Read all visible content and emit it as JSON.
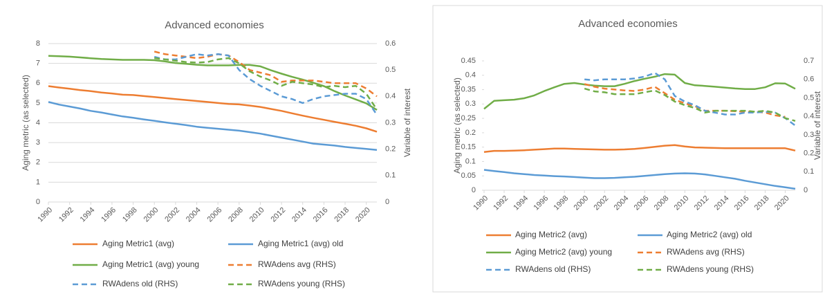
{
  "chart_data": [
    {
      "type": "line",
      "title": "Advanced economies",
      "y_label": "Aging metric (as selected)",
      "y2_label": "Variable of interest",
      "x": [
        1990,
        1991,
        1992,
        1993,
        1994,
        1995,
        1996,
        1997,
        1998,
        1999,
        2000,
        2001,
        2002,
        2003,
        2004,
        2005,
        2006,
        2007,
        2008,
        2009,
        2010,
        2011,
        2012,
        2013,
        2014,
        2015,
        2016,
        2017,
        2018,
        2019,
        2020,
        2021
      ],
      "xlim": [
        1990,
        2021
      ],
      "xticks": [
        1990,
        1992,
        1994,
        1996,
        1998,
        2000,
        2002,
        2004,
        2006,
        2008,
        2010,
        2012,
        2014,
        2016,
        2018,
        2020
      ],
      "ylim": [
        0,
        8
      ],
      "yticks": [
        0,
        1,
        2,
        3,
        4,
        5,
        6,
        7,
        8
      ],
      "y2lim": [
        0,
        0.6
      ],
      "y2ticks": [
        0,
        0.1,
        0.2,
        0.3,
        0.4,
        0.5,
        0.6
      ],
      "grid": true,
      "legend": "bottom",
      "series": [
        {
          "name": "Aging Metric1 (avg)",
          "color": "#ed7d31",
          "dashed": false,
          "values": [
            5.85,
            5.78,
            5.72,
            5.65,
            5.6,
            5.53,
            5.48,
            5.42,
            5.4,
            5.35,
            5.3,
            5.25,
            5.2,
            5.15,
            5.1,
            5.05,
            5.0,
            4.95,
            4.93,
            4.87,
            4.8,
            4.7,
            4.6,
            4.48,
            4.36,
            4.25,
            4.15,
            4.05,
            3.95,
            3.85,
            3.72,
            3.55
          ]
        },
        {
          "name": "Aging Metric1 (avg) old",
          "color": "#5b9bd5",
          "dashed": false,
          "values": [
            5.05,
            4.92,
            4.82,
            4.72,
            4.6,
            4.52,
            4.42,
            4.32,
            4.25,
            4.17,
            4.1,
            4.02,
            3.95,
            3.88,
            3.8,
            3.75,
            3.7,
            3.65,
            3.6,
            3.53,
            3.45,
            3.35,
            3.25,
            3.15,
            3.05,
            2.95,
            2.9,
            2.85,
            2.78,
            2.73,
            2.68,
            2.63
          ]
        },
        {
          "name": "Aging Metric1 (avg) young",
          "color": "#70ad47",
          "dashed": false,
          "values": [
            7.38,
            7.36,
            7.34,
            7.3,
            7.26,
            7.22,
            7.2,
            7.18,
            7.18,
            7.18,
            7.16,
            7.1,
            7.02,
            6.98,
            6.93,
            6.9,
            6.9,
            6.9,
            6.92,
            6.92,
            6.85,
            6.65,
            6.48,
            6.32,
            6.18,
            6.02,
            5.85,
            5.6,
            5.38,
            5.18,
            4.98,
            4.65
          ]
        },
        {
          "name": "RWAdens avg (RHS)",
          "color": "#ed7d31",
          "dashed": true,
          "axis": "y2",
          "values": [
            null,
            null,
            null,
            null,
            null,
            null,
            null,
            null,
            null,
            null,
            0.57,
            0.56,
            0.555,
            0.55,
            0.545,
            0.55,
            0.56,
            0.555,
            0.53,
            0.5,
            0.49,
            0.48,
            0.455,
            0.46,
            0.46,
            0.46,
            0.455,
            0.45,
            0.45,
            0.45,
            0.43,
            0.4
          ]
        },
        {
          "name": "RWAdens old (RHS)",
          "color": "#5b9bd5",
          "dashed": true,
          "axis": "y2",
          "values": [
            null,
            null,
            null,
            null,
            null,
            null,
            null,
            null,
            null,
            null,
            0.55,
            0.54,
            0.54,
            0.55,
            0.56,
            0.555,
            0.56,
            0.555,
            0.5,
            0.465,
            0.44,
            0.42,
            0.4,
            0.39,
            0.375,
            0.39,
            0.4,
            0.405,
            0.41,
            0.41,
            0.39,
            0.33
          ]
        },
        {
          "name": "RWAdens young (RHS)",
          "color": "#70ad47",
          "dashed": true,
          "axis": "y2",
          "values": [
            null,
            null,
            null,
            null,
            null,
            null,
            null,
            null,
            null,
            null,
            0.545,
            0.54,
            0.535,
            0.53,
            0.528,
            0.53,
            0.54,
            0.545,
            0.525,
            0.495,
            0.475,
            0.46,
            0.44,
            0.455,
            0.45,
            0.445,
            0.435,
            0.44,
            0.435,
            0.44,
            0.41,
            0.35
          ]
        }
      ]
    },
    {
      "type": "line",
      "title": "Advanced economies",
      "y_label": "Aging metric (as selected)",
      "y2_label": "Variable of interest",
      "x": [
        1990,
        1991,
        1992,
        1993,
        1994,
        1995,
        1996,
        1997,
        1998,
        1999,
        2000,
        2001,
        2002,
        2003,
        2004,
        2005,
        2006,
        2007,
        2008,
        2009,
        2010,
        2011,
        2012,
        2013,
        2014,
        2015,
        2016,
        2017,
        2018,
        2019,
        2020,
        2021
      ],
      "xlim": [
        1990,
        2021
      ],
      "xticks": [
        1990,
        1992,
        1994,
        1996,
        1998,
        2000,
        2002,
        2004,
        2006,
        2008,
        2010,
        2012,
        2014,
        2016,
        2018,
        2020
      ],
      "ylim": [
        0,
        0.45
      ],
      "yticks": [
        0,
        0.05,
        0.1,
        0.15,
        0.2,
        0.25,
        0.3,
        0.35,
        0.4,
        0.45
      ],
      "y2lim": [
        0,
        0.7
      ],
      "y2ticks": [
        0,
        0.1,
        0.2,
        0.3,
        0.4,
        0.5,
        0.6,
        0.7
      ],
      "grid": false,
      "legend": "bottom",
      "series": [
        {
          "name": "Aging Metric2 (avg)",
          "color": "#ed7d31",
          "dashed": false,
          "values": [
            0.133,
            0.137,
            0.137,
            0.138,
            0.139,
            0.141,
            0.143,
            0.145,
            0.145,
            0.144,
            0.143,
            0.142,
            0.141,
            0.141,
            0.142,
            0.144,
            0.147,
            0.151,
            0.155,
            0.157,
            0.152,
            0.149,
            0.148,
            0.147,
            0.146,
            0.146,
            0.146,
            0.146,
            0.146,
            0.146,
            0.146,
            0.138
          ]
        },
        {
          "name": "Aging Metric2 (avg) old",
          "color": "#5b9bd5",
          "dashed": false,
          "values": [
            0.071,
            0.067,
            0.063,
            0.059,
            0.056,
            0.053,
            0.051,
            0.049,
            0.048,
            0.046,
            0.044,
            0.042,
            0.042,
            0.043,
            0.045,
            0.047,
            0.05,
            0.053,
            0.056,
            0.058,
            0.059,
            0.058,
            0.055,
            0.05,
            0.045,
            0.04,
            0.033,
            0.027,
            0.021,
            0.015,
            0.01,
            0.005
          ]
        },
        {
          "name": "Aging Metric2 (avg) young",
          "color": "#70ad47",
          "dashed": false,
          "values": [
            0.283,
            0.311,
            0.313,
            0.315,
            0.32,
            0.33,
            0.345,
            0.358,
            0.37,
            0.373,
            0.368,
            0.364,
            0.362,
            0.362,
            0.37,
            0.38,
            0.388,
            0.395,
            0.404,
            0.402,
            0.373,
            0.365,
            0.363,
            0.36,
            0.357,
            0.354,
            0.352,
            0.352,
            0.358,
            0.372,
            0.371,
            0.353
          ]
        },
        {
          "name": "RWAdens avg (RHS)",
          "color": "#ed7d31",
          "dashed": true,
          "axis": "y2",
          "values": [
            null,
            null,
            null,
            null,
            null,
            null,
            null,
            null,
            null,
            null,
            0.575,
            0.56,
            0.55,
            0.545,
            0.54,
            0.537,
            0.545,
            0.56,
            0.525,
            0.49,
            0.47,
            0.455,
            0.43,
            0.43,
            0.43,
            0.428,
            0.425,
            0.425,
            0.42,
            0.405,
            0.397,
            null
          ]
        },
        {
          "name": "RWAdens old (RHS)",
          "color": "#5b9bd5",
          "dashed": true,
          "axis": "y2",
          "values": [
            null,
            null,
            null,
            null,
            null,
            null,
            null,
            null,
            null,
            null,
            0.6,
            0.595,
            0.6,
            0.6,
            0.6,
            0.605,
            0.615,
            0.635,
            0.6,
            0.51,
            0.48,
            0.46,
            0.43,
            0.42,
            0.41,
            0.41,
            0.42,
            0.42,
            0.425,
            0.42,
            0.39,
            0.35
          ]
        },
        {
          "name": "RWAdens young (RHS)",
          "color": "#70ad47",
          "dashed": true,
          "axis": "y2",
          "values": [
            null,
            null,
            null,
            null,
            null,
            null,
            null,
            null,
            null,
            null,
            0.55,
            0.535,
            0.53,
            0.52,
            0.52,
            0.52,
            0.53,
            0.54,
            0.515,
            0.48,
            0.46,
            0.445,
            0.42,
            0.43,
            0.43,
            0.43,
            0.43,
            0.425,
            0.43,
            0.42,
            0.39,
            0.375
          ]
        }
      ]
    }
  ]
}
